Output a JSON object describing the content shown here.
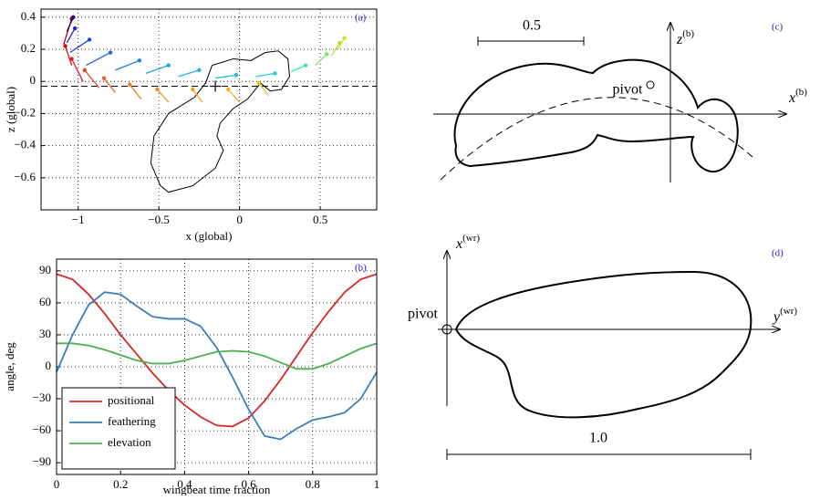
{
  "chart_data": [
    {
      "type": "trajectory",
      "label": "(a)",
      "xlabel": "x (global)",
      "ylabel": "z (global)",
      "xlim": [
        -1.23,
        0.85
      ],
      "ylim": [
        -0.8,
        0.45
      ],
      "xticks": [
        {
          "value": -1,
          "label": "−1"
        },
        {
          "value": -0.5,
          "label": "−0.5"
        },
        0,
        0.5
      ],
      "yticks": [
        {
          "value": -0.6,
          "label": "−0.6"
        },
        {
          "value": -0.4,
          "label": "−0.4"
        },
        {
          "value": -0.2,
          "label": "−0.2"
        },
        0,
        0.2,
        0.4
      ],
      "grid": true,
      "hline": -0.03,
      "marker": {
        "x": -0.15,
        "y": -0.03
      },
      "outline": {
        "color": "#000000",
        "x": [
          -0.17,
          -0.04,
          0.07,
          0.16,
          0.24,
          0.3,
          0.31,
          0.26,
          0.19,
          0.13,
          0.09,
          0.05,
          -0.04,
          -0.12,
          -0.14,
          -0.1,
          -0.15,
          -0.29,
          -0.44,
          -0.49,
          -0.55,
          -0.53,
          -0.44,
          -0.28,
          -0.21,
          -0.17
        ],
        "y": [
          0.1,
          0.14,
          0.13,
          0.18,
          0.19,
          0.14,
          0.03,
          -0.05,
          -0.06,
          -0.01,
          -0.06,
          -0.11,
          -0.17,
          -0.26,
          -0.34,
          -0.43,
          -0.54,
          -0.65,
          -0.69,
          -0.65,
          -0.51,
          -0.34,
          -0.2,
          -0.1,
          -0.01,
          0.1
        ]
      },
      "segments": [
        {
          "color": "#b00000",
          "x": [
            -1.04,
            -1.09
          ],
          "y": [
            0.39,
            0.23
          ]
        },
        {
          "color": "#d01010",
          "x": [
            -1.08,
            -1.04
          ],
          "y": [
            0.22,
            0.1
          ]
        },
        {
          "color": "#e02020",
          "x": [
            -1.04,
            -0.97
          ],
          "y": [
            0.14,
            0.0
          ]
        },
        {
          "color": "#f04020",
          "x": [
            -0.96,
            -0.87
          ],
          "y": [
            0.07,
            -0.04
          ]
        },
        {
          "color": "#f06020",
          "x": [
            -0.84,
            -0.77
          ],
          "y": [
            0.02,
            -0.07
          ]
        },
        {
          "color": "#f08020",
          "x": [
            -0.68,
            -0.61
          ],
          "y": [
            -0.02,
            -0.11
          ]
        },
        {
          "color": "#f09020",
          "x": [
            -0.51,
            -0.44
          ],
          "y": [
            -0.05,
            -0.13
          ]
        },
        {
          "color": "#f0a020",
          "x": [
            -0.29,
            -0.23
          ],
          "y": [
            -0.05,
            -0.13
          ]
        },
        {
          "color": "#f0b020",
          "x": [
            -0.07,
            0.0
          ],
          "y": [
            -0.05,
            -0.13
          ]
        },
        {
          "color": "#f0c020",
          "x": [
            0.12,
            0.18
          ],
          "y": [
            -0.01,
            -0.09
          ]
        },
        {
          "color": "#200080",
          "x": [
            -1.03,
            -1.07
          ],
          "y": [
            0.4,
            0.31
          ]
        },
        {
          "color": "#2020c0",
          "x": [
            -1.02,
            -1.07
          ],
          "y": [
            0.33,
            0.24
          ]
        },
        {
          "color": "#2040d0",
          "x": [
            -0.93,
            -1.05
          ],
          "y": [
            0.26,
            0.18
          ]
        },
        {
          "color": "#2060e0",
          "x": [
            -0.8,
            -0.95
          ],
          "y": [
            0.18,
            0.1
          ]
        },
        {
          "color": "#2080e0",
          "x": [
            -0.62,
            -0.77
          ],
          "y": [
            0.13,
            0.07
          ]
        },
        {
          "color": "#20a0e0",
          "x": [
            -0.44,
            -0.58
          ],
          "y": [
            0.1,
            0.05
          ]
        },
        {
          "color": "#20b0e0",
          "x": [
            -0.25,
            -0.38
          ],
          "y": [
            0.07,
            0.03
          ]
        },
        {
          "color": "#20c0e0",
          "x": [
            -0.02,
            -0.15
          ],
          "y": [
            0.04,
            0.02
          ]
        },
        {
          "color": "#20d0d0",
          "x": [
            0.22,
            0.1
          ],
          "y": [
            0.05,
            0.03
          ]
        },
        {
          "color": "#40e0b0",
          "x": [
            0.41,
            0.32
          ],
          "y": [
            0.1,
            0.06
          ]
        },
        {
          "color": "#80e060",
          "x": [
            0.54,
            0.47
          ],
          "y": [
            0.17,
            0.1
          ]
        },
        {
          "color": "#b0e040",
          "x": [
            0.62,
            0.57
          ],
          "y": [
            0.24,
            0.16
          ]
        },
        {
          "color": "#d0e020",
          "x": [
            0.65,
            0.61
          ],
          "y": [
            0.27,
            0.2
          ]
        }
      ]
    },
    {
      "type": "line",
      "label": "(b)",
      "xlabel": "wingbeat time fraction",
      "ylabel": "angle, deg",
      "xlim": [
        0,
        1
      ],
      "ylim": [
        -101,
        101
      ],
      "xticks": [
        0,
        0.2,
        0.4,
        0.6,
        0.8,
        1
      ],
      "yticks": [
        {
          "value": -90,
          "label": "−90"
        },
        {
          "value": -60,
          "label": "−60"
        },
        {
          "value": -30,
          "label": "−30"
        },
        0,
        30,
        60,
        90
      ],
      "grid": true,
      "legend": "lower left",
      "x": [
        0,
        0.05,
        0.1,
        0.15,
        0.2,
        0.25,
        0.3,
        0.35,
        0.4,
        0.45,
        0.5,
        0.55,
        0.6,
        0.65,
        0.7,
        0.75,
        0.8,
        0.85,
        0.9,
        0.95,
        1
      ],
      "series": [
        {
          "name": "positional",
          "color": "#d62728",
          "values": [
            87,
            82,
            68,
            50,
            30,
            12,
            -6,
            -22,
            -36,
            -47,
            -55,
            -56,
            -48,
            -32,
            -12,
            10,
            32,
            52,
            70,
            82,
            87
          ]
        },
        {
          "name": "feathering",
          "color": "#3a7fb8",
          "values": [
            -5,
            30,
            58,
            70,
            68,
            57,
            47,
            45,
            45,
            38,
            18,
            -10,
            -40,
            -65,
            -68,
            -58,
            -50,
            -47,
            -43,
            -30,
            -5
          ]
        },
        {
          "name": "elevation",
          "color": "#4caf50",
          "values": [
            22,
            22,
            20,
            16,
            11,
            6,
            3,
            3,
            6,
            10,
            14,
            15,
            14,
            10,
            4,
            -2,
            -2,
            3,
            10,
            17,
            22
          ]
        }
      ]
    }
  ],
  "diagram_c": {
    "label": "(c)",
    "scale": "0.5",
    "pivot": "pivot",
    "z_axis": {
      "base": "z",
      "sup": "(b)"
    },
    "x_axis": {
      "base": "x",
      "sup": "(b)"
    }
  },
  "diagram_d": {
    "label": "(d)",
    "scale": "1.0",
    "pivot": "pivot",
    "x_axis": {
      "base": "x",
      "sup": "(wr)"
    },
    "y_axis": {
      "base": "y",
      "sup": "(wr)"
    }
  }
}
